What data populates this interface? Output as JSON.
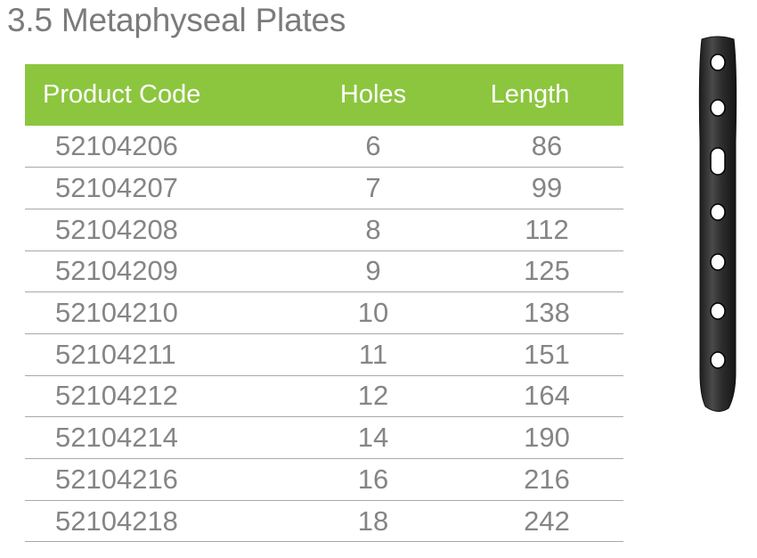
{
  "title": "3.5 Metaphyseal Plates",
  "table": {
    "headers": {
      "product_code": "Product Code",
      "holes": "Holes",
      "length": "Length"
    },
    "rows": [
      {
        "code": "52104206",
        "holes": "6",
        "length": "86"
      },
      {
        "code": "52104207",
        "holes": "7",
        "length": "99"
      },
      {
        "code": "52104208",
        "holes": "8",
        "length": "112"
      },
      {
        "code": "52104209",
        "holes": "9",
        "length": "125"
      },
      {
        "code": "52104210",
        "holes": "10",
        "length": "138"
      },
      {
        "code": "52104211",
        "holes": "11",
        "length": "151"
      },
      {
        "code": "52104212",
        "holes": "12",
        "length": "164"
      },
      {
        "code": "52104214",
        "holes": "14",
        "length": "190"
      },
      {
        "code": "52104216",
        "holes": "16",
        "length": "216"
      },
      {
        "code": "52104218",
        "holes": "18",
        "length": "242"
      }
    ]
  },
  "colors": {
    "header_background": "#8cc63e",
    "header_text": "#ffffff",
    "body_text": "#858585",
    "title_text": "#7b7b7b",
    "row_divider": "#a8a8a8",
    "plate": "#2b2b2b"
  },
  "image": {
    "icon": "metaphyseal-plate-image"
  }
}
